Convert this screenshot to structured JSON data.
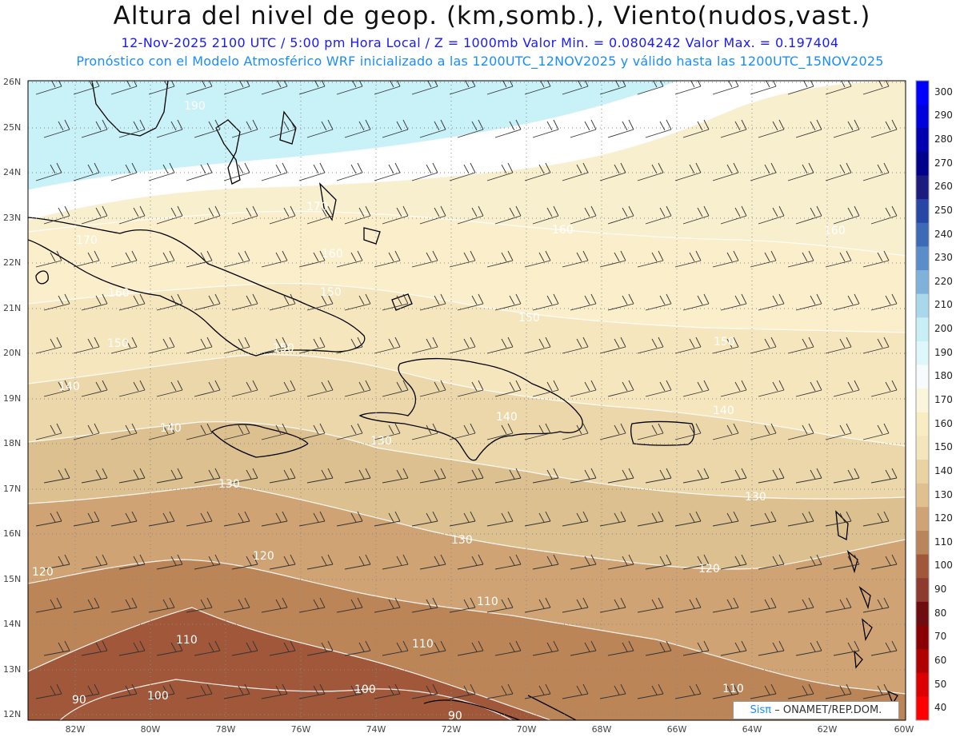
{
  "header": {
    "title": "Altura del nivel de geop. (km,somb.), Viento(nudos,vast.)",
    "subtitle_line1": "12-Nov-2025  2100 UTC / 5:00 pm Hora Local / Z = 1000mb  Valor Min. = 0.0804242   Valor Max. = 0.197404",
    "subtitle_line2": "Pronóstico con el Modelo Atmosférico WRF inicializado a las 1200UTC_12NOV2025 y válido hasta las  1200UTC_15NOV2025"
  },
  "map": {
    "lon_range": [
      -83.2,
      -60
    ],
    "lat_range": [
      11.9,
      26.1
    ],
    "lat_labels": [
      "26N",
      "25N",
      "24N",
      "23N",
      "22N",
      "21N",
      "20N",
      "19N",
      "18N",
      "17N",
      "16N",
      "15N",
      "14N",
      "13N",
      "12N"
    ],
    "lon_labels": [
      "82W",
      "80W",
      "78W",
      "76W",
      "74W",
      "72W",
      "70W",
      "68W",
      "66W",
      "64W",
      "62W",
      "60W"
    ],
    "contour_labels": [
      "190",
      "170",
      "170",
      "160",
      "160",
      "160",
      "160",
      "150",
      "150",
      "150",
      "150",
      "150",
      "140",
      "140",
      "140",
      "140",
      "130",
      "130",
      "130",
      "130",
      "120",
      "120",
      "120",
      "110",
      "110",
      "110",
      "110",
      "100",
      "100",
      "90",
      "90"
    ]
  },
  "colorbar": {
    "labels": [
      "300",
      "290",
      "280",
      "270",
      "260",
      "250",
      "240",
      "230",
      "220",
      "210",
      "200",
      "190",
      "180",
      "170",
      "160",
      "150",
      "140",
      "130",
      "120",
      "110",
      "100",
      "90",
      "80",
      "70",
      "60",
      "50",
      "40"
    ],
    "colors": [
      "#0000ff",
      "#0000dd",
      "#0000b0",
      "#00008a",
      "#1c1c80",
      "#2846a5",
      "#3d6ab5",
      "#5b8ec8",
      "#7fb2db",
      "#a9d8ec",
      "#c8eef6",
      "#def7fb",
      "#f8fbfc",
      "#fbf5dc",
      "#f8ecc2",
      "#f4e5bd",
      "#ead3a2",
      "#e0c08e",
      "#cfa374",
      "#b9855a",
      "#a0573a",
      "#8e3a2e",
      "#6e0c10",
      "#8a0000",
      "#b00000",
      "#dd0000",
      "#ff0000"
    ]
  },
  "credit": {
    "sis": "Sisπ",
    "org": "– ONAMET/REP.DOM."
  }
}
